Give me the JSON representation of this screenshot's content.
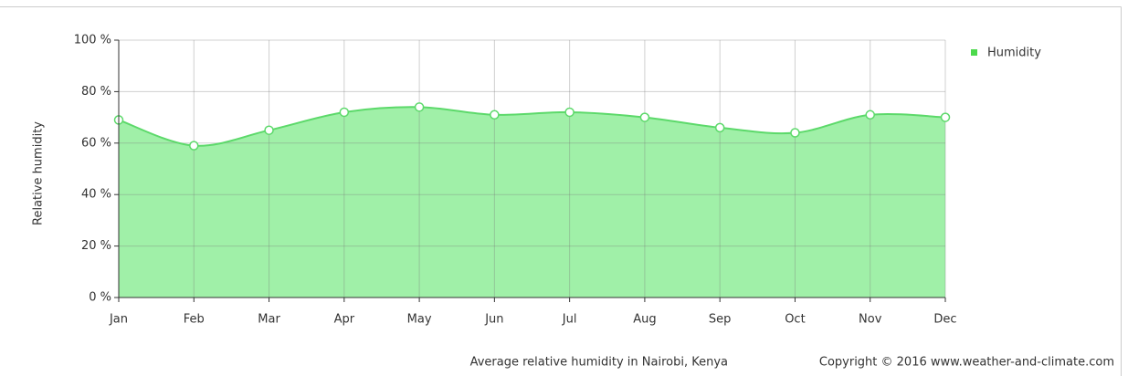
{
  "chart_data": {
    "type": "area",
    "y_label": "Relative humidity",
    "caption": "Average relative humidity in Nairobi, Kenya",
    "copyright": "Copyright © 2016 www.weather-and-climate.com",
    "categories": [
      "Jan",
      "Feb",
      "Mar",
      "Apr",
      "May",
      "Jun",
      "Jul",
      "Aug",
      "Sep",
      "Oct",
      "Nov",
      "Dec"
    ],
    "series": [
      {
        "name": "Humidity",
        "color": "#4cd94c",
        "fill": "#a0f0a8",
        "line_color": "#5cd96a",
        "values": [
          69,
          59,
          65,
          72,
          74,
          71,
          72,
          70,
          66,
          64,
          71,
          70
        ]
      }
    ],
    "ylim": [
      0,
      100
    ],
    "yticks": [
      {
        "value": 0,
        "label": "0 %"
      },
      {
        "value": 20,
        "label": "20 %"
      },
      {
        "value": 40,
        "label": "40 %"
      },
      {
        "value": 60,
        "label": "60 %"
      },
      {
        "value": 80,
        "label": "80 %"
      },
      {
        "value": 100,
        "label": "100 %"
      }
    ],
    "grid": true,
    "legend": "top-right"
  }
}
